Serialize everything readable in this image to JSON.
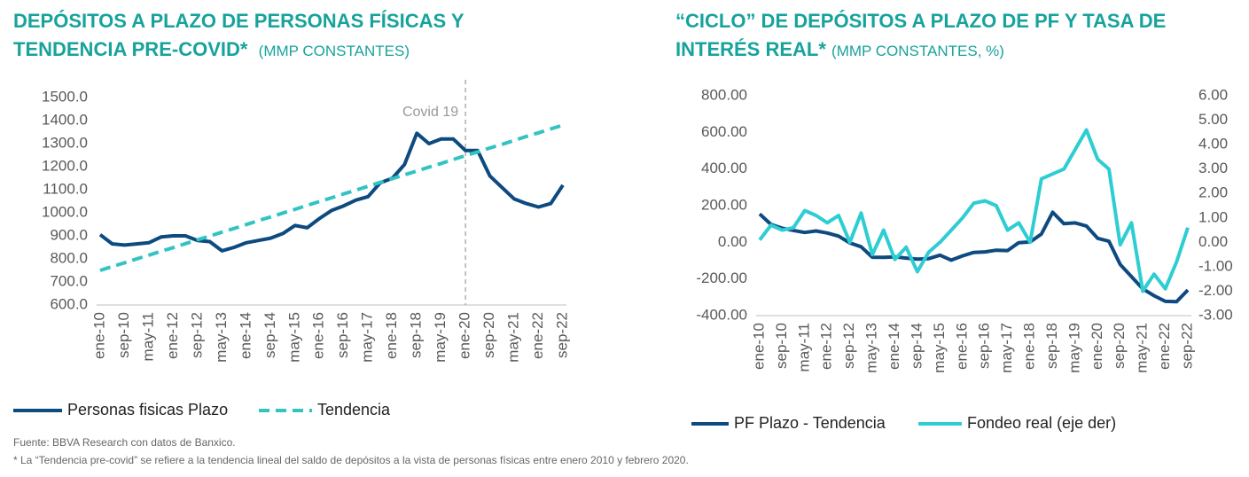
{
  "chart_data": [
    {
      "type": "line",
      "title": "DEPÓSITOS A PLAZO DE PERSONAS FÍSICAS Y TENDENCIA PRE-COVID*",
      "subtitle": "(MMP CONSTANTES)",
      "categories": [
        "ene-10",
        null,
        "sep-10",
        null,
        "may-11",
        null,
        "ene-12",
        null,
        "sep-12",
        null,
        "may-13",
        null,
        "ene-14",
        null,
        "sep-14",
        null,
        "may-15",
        null,
        "ene-16",
        null,
        "sep-16",
        null,
        "may-17",
        null,
        "ene-18",
        null,
        "sep-18",
        null,
        "may-19",
        null,
        "ene-20",
        null,
        "sep-20",
        null,
        "may-21",
        null,
        "ene-22",
        null,
        "sep-22"
      ],
      "series": [
        {
          "name": "Personas fisicas Plazo",
          "color": "#0d4a80",
          "dash": false,
          "values": [
            905,
            865,
            860,
            865,
            870,
            895,
            900,
            900,
            880,
            875,
            835,
            850,
            870,
            880,
            890,
            910,
            945,
            935,
            975,
            1010,
            1030,
            1055,
            1070,
            1130,
            1150,
            1210,
            1345,
            1300,
            1320,
            1320,
            1270,
            1270,
            1160,
            1110,
            1060,
            1040,
            1025,
            1040,
            1120
          ]
        },
        {
          "name": "Tendencia",
          "color": "#33c3c3",
          "dash": true,
          "values": [
            750,
            767,
            783,
            800,
            816,
            833,
            849,
            866,
            883,
            899,
            916,
            932,
            949,
            966,
            982,
            999,
            1015,
            1032,
            1049,
            1065,
            1082,
            1098,
            1115,
            1132,
            1148,
            1165,
            1181,
            1198,
            1214,
            1231,
            1248,
            1264,
            1281,
            1297,
            1314,
            1331,
            1347,
            1364,
            1380
          ]
        }
      ],
      "ylim": [
        600,
        1500
      ],
      "yticks": [
        {
          "value": 600,
          "label": "600.0"
        },
        {
          "value": 700,
          "label": "700.0"
        },
        {
          "value": 800,
          "label": "800.0"
        },
        {
          "value": 900,
          "label": "900.0"
        },
        {
          "value": 1000,
          "label": "1000.0"
        },
        {
          "value": 1100,
          "label": "1100.0"
        },
        {
          "value": 1200,
          "label": "1200.0"
        },
        {
          "value": 1300,
          "label": "1300.0"
        },
        {
          "value": 1400,
          "label": "1400.0"
        },
        {
          "value": 1500,
          "label": "1500.0"
        }
      ],
      "annotation": {
        "text": "Covid 19",
        "at": "ene-20"
      }
    },
    {
      "type": "line",
      "title": "“CICLO” DE DEPÓSITOS A PLAZO DE PF Y TASA DE INTERÉS REAL*",
      "subtitle": "(MMP CONSTANTES, %)",
      "categories": [
        "ene-10",
        null,
        "sep-10",
        null,
        "may-11",
        null,
        "ene-12",
        null,
        "sep-12",
        null,
        "may-13",
        null,
        "ene-14",
        null,
        "sep-14",
        null,
        "may-15",
        null,
        "ene-16",
        null,
        "sep-16",
        null,
        "may-17",
        null,
        "ene-18",
        null,
        "sep-18",
        null,
        "may-19",
        null,
        "ene-20",
        null,
        "sep-20",
        null,
        "may-21",
        null,
        "ene-22",
        null,
        "sep-22"
      ],
      "series": [
        {
          "name": "PF Plazo - Tendencia",
          "color": "#0d4a80",
          "axis": "y",
          "values": [
            155,
            98,
            77,
            65,
            54,
            62,
            51,
            34,
            -3,
            -24,
            -81,
            -82,
            -79,
            -86,
            -92,
            -89,
            -70,
            -97,
            -74,
            -55,
            -52,
            -43,
            -45,
            -2,
            2,
            45,
            164,
            102,
            106,
            89,
            22,
            6,
            -121,
            -187,
            -254,
            -291,
            -322,
            -324,
            -260
          ]
        },
        {
          "name": "Fondeo real (eje der)",
          "color": "#2ecdd3",
          "axis": "y2",
          "values": [
            0.1,
            0.7,
            0.5,
            0.6,
            1.3,
            1.1,
            0.8,
            1.1,
            0.0,
            1.2,
            -0.5,
            0.5,
            -0.7,
            -0.2,
            -1.2,
            -0.4,
            0.0,
            0.5,
            1.0,
            1.6,
            1.7,
            1.5,
            0.5,
            0.8,
            0.0,
            2.6,
            2.8,
            3.0,
            3.8,
            4.6,
            3.4,
            3.0,
            -0.1,
            0.8,
            -2.0,
            -1.3,
            -1.9,
            -0.8,
            0.6
          ]
        }
      ],
      "ylim": [
        -400,
        800
      ],
      "yticks": [
        {
          "value": -400,
          "label": "-400.00"
        },
        {
          "value": -200,
          "label": "-200.00"
        },
        {
          "value": 0,
          "label": "0.00"
        },
        {
          "value": 200,
          "label": "200.00"
        },
        {
          "value": 400,
          "label": "400.00"
        },
        {
          "value": 600,
          "label": "600.00"
        },
        {
          "value": 800,
          "label": "800.00"
        }
      ],
      "y2lim": [
        -3,
        6
      ],
      "y2ticks": [
        {
          "value": -3,
          "label": "-3.00"
        },
        {
          "value": -2,
          "label": "-2.00"
        },
        {
          "value": -1,
          "label": "-1.00"
        },
        {
          "value": 0,
          "label": "0.00"
        },
        {
          "value": 1,
          "label": "1.00"
        },
        {
          "value": 2,
          "label": "2.00"
        },
        {
          "value": 3,
          "label": "3.00"
        },
        {
          "value": 4,
          "label": "4.00"
        },
        {
          "value": 5,
          "label": "5.00"
        },
        {
          "value": 6,
          "label": "6.00"
        }
      ]
    }
  ],
  "footnotes": [
    "Fuente: BBVA Research con datos de Banxico.",
    "* La “Tendencia pre-covid” se refiere a la tendencia lineal del saldo de depósitos a la vista de personas físicas entre enero 2010 y febrero 2020."
  ]
}
